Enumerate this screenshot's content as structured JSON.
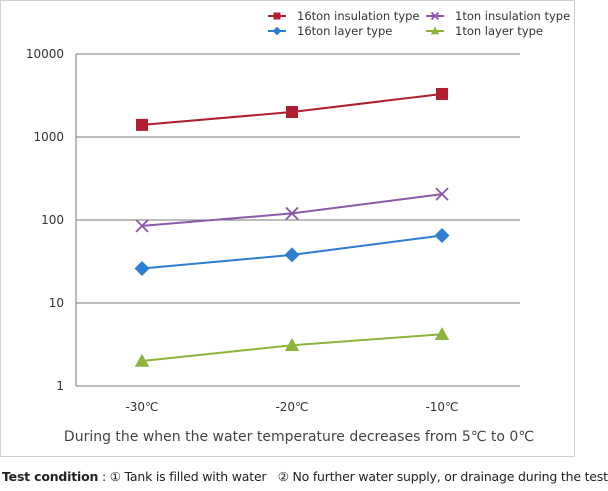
{
  "chart_data": {
    "type": "line",
    "categories": [
      "-30℃",
      "-20℃",
      "-10℃"
    ],
    "y_scale": "log",
    "ylim": [
      1,
      10000
    ],
    "y_ticks": [
      1,
      10,
      100,
      1000,
      10000
    ],
    "y_tick_labels": [
      "1",
      "10",
      "100",
      "1000",
      "10000"
    ],
    "xlabel": "During the when the water temperature decreases from 5℃ to 0℃",
    "ylabel": "",
    "title": "",
    "grid": "horizontal",
    "legend_position": "top-right",
    "series": [
      {
        "name": "16ton insulation type",
        "color": "#b01e2f",
        "marker": "square",
        "values": [
          1400,
          2000,
          3300
        ]
      },
      {
        "name": "1ton insulation type",
        "color": "#8a5aa8",
        "marker": "x",
        "values": [
          85,
          120,
          205
        ]
      },
      {
        "name": "16ton layer type",
        "color": "#2e7dd1",
        "marker": "diamond",
        "values": [
          26,
          38,
          65
        ]
      },
      {
        "name": "1ton layer type",
        "color": "#8db33a",
        "marker": "triangle",
        "values": [
          2,
          3.1,
          4.2
        ]
      }
    ]
  },
  "footnote": {
    "label": "Test condition",
    "separator": " : ",
    "item1": "① Tank is filled with water",
    "item2": "② No further water supply, or drainage during the test"
  }
}
